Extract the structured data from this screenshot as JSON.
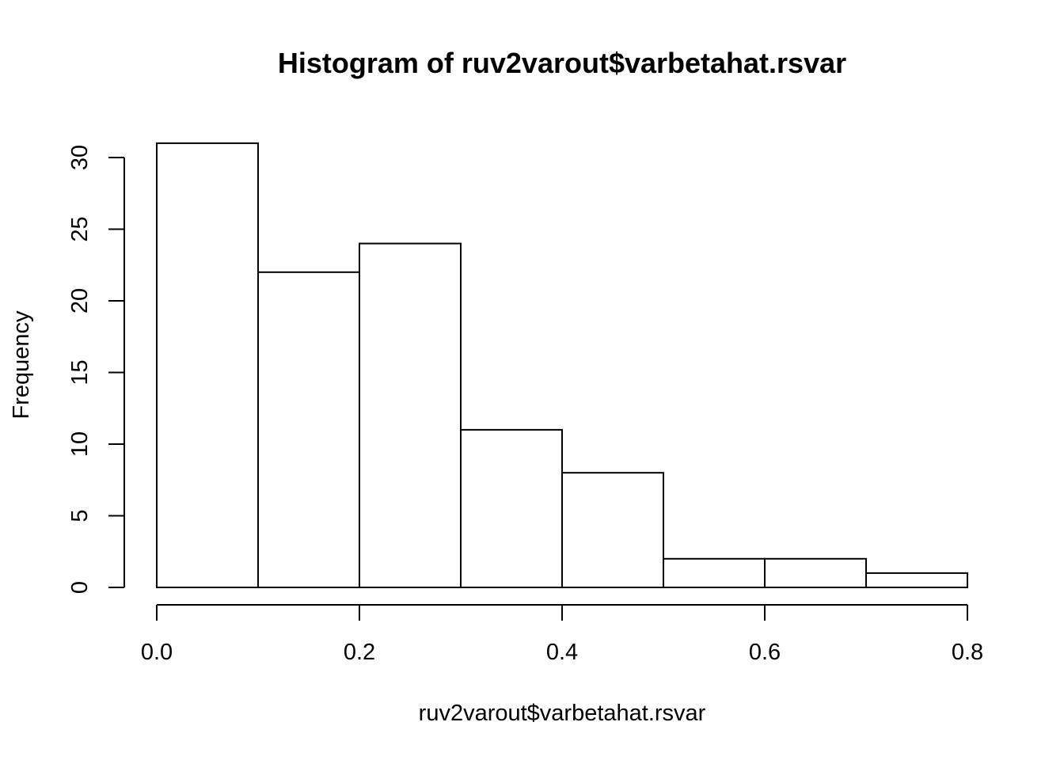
{
  "chart_data": {
    "type": "bar",
    "title": "Histogram of ruv2varout$varbetahat.rsvar",
    "xlabel": "ruv2varout$varbetahat.rsvar",
    "ylabel": "Frequency",
    "bin_edges": [
      0.0,
      0.1,
      0.2,
      0.3,
      0.4,
      0.5,
      0.6,
      0.7,
      0.8
    ],
    "values": [
      31,
      22,
      24,
      11,
      8,
      2,
      2,
      1
    ],
    "xlim": [
      0.0,
      0.8
    ],
    "ylim": [
      0,
      30
    ],
    "x_ticks": [
      0.0,
      0.2,
      0.4,
      0.6,
      0.8
    ],
    "x_tick_labels": [
      "0.0",
      "0.2",
      "0.4",
      "0.6",
      "0.8"
    ],
    "y_ticks": [
      0,
      5,
      10,
      15,
      20,
      25,
      30
    ],
    "y_tick_labels": [
      "0",
      "5",
      "10",
      "15",
      "20",
      "25",
      "30"
    ],
    "grid": false,
    "legend": "none",
    "colors": {
      "bar_fill": "#ffffff",
      "bar_stroke": "#000000"
    }
  }
}
